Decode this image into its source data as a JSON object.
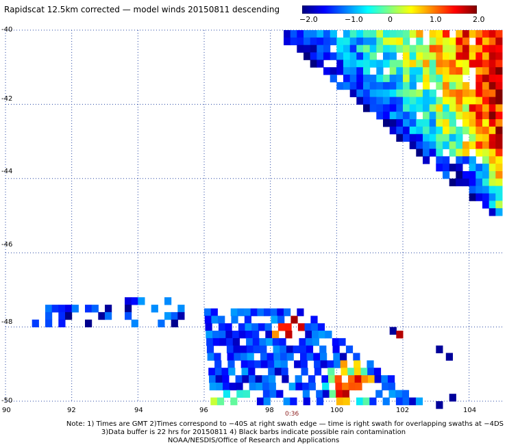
{
  "title": "Rapidscat 12.5km corrected — model winds 20150811 descending",
  "colorbar": {
    "tick_labels": [
      "−2.0",
      "−1.0",
      "0",
      "1.0",
      "2.0"
    ],
    "tick_values": [
      -2.0,
      -1.0,
      0.0,
      1.0,
      2.0
    ],
    "colors": [
      "#000080",
      "#0000ff",
      "#0080ff",
      "#00ffff",
      "#80ff80",
      "#ffff00",
      "#ff8000",
      "#ff0000",
      "#800000"
    ]
  },
  "axes": {
    "lon_labels": [
      "90",
      "92",
      "94",
      "96",
      "98",
      "100",
      "102",
      "104"
    ],
    "lon_values": [
      90,
      92,
      94,
      96,
      98,
      100,
      102,
      104
    ],
    "lat_labels": [
      "-40",
      "-42",
      "-44",
      "-46",
      "-48",
      "-50"
    ],
    "lat_values": [
      -40,
      -42,
      -44,
      -46,
      -48,
      -50
    ],
    "lon_range": [
      90,
      105
    ],
    "lat_range": [
      -50,
      -40
    ],
    "grid": "dotted"
  },
  "time_label": "0:36",
  "notes": [
    "Note: 1) Times are GMT 2)Times correspond to −40S at right swath edge — time is right swath for overlapping swaths at −4DS",
    "3)Data buffer is 22 hrs for 20150811 4) Black barbs indicate possible rain contamination",
    "NOAA/NESDIS/Office of Research and Applications"
  ],
  "chart_data": {
    "type": "heatmap",
    "title": "Rapidscat 12.5km corrected — model winds 20150811 descending",
    "xlim": [
      90,
      105
    ],
    "ylim": [
      -50,
      -40
    ],
    "value_range": [
      -2.0,
      2.0
    ],
    "regions": [
      {
        "lon_min": 98.1,
        "lon_max": 105,
        "lat_top": -40.0,
        "lat_bottom_at_east": -45.0,
        "typical_values": [
          -1.5,
          2.0
        ],
        "note": "NE swath, strongly positive (red) in east"
      },
      {
        "lon_min": 90.5,
        "lon_max": 93.2,
        "lat_min": -48.0,
        "lat_max": -47.4,
        "typical_values": [
          -2.0,
          -0.8
        ]
      },
      {
        "lon_min": 93.6,
        "lon_max": 95.3,
        "lat_min": -48.0,
        "lat_max": -47.2,
        "typical_values": [
          -2.0,
          -0.5
        ]
      },
      {
        "lon_min": 96.0,
        "lon_max": 102.5,
        "lat_min": -50.0,
        "lat_max": -47.5,
        "typical_values": [
          -2.0,
          2.0
        ],
        "note": "S cluster, positive streaks near 98.5/-48 and 100.2/-49.5"
      },
      {
        "lon_min": 102.9,
        "lon_max": 103.8,
        "lat_min": -50.0,
        "lat_max": -48.4,
        "typical_values": [
          -2.0,
          -1.8
        ]
      }
    ]
  }
}
